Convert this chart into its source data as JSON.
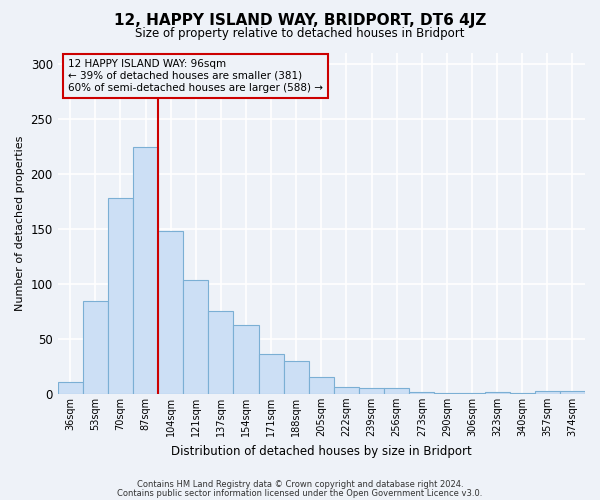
{
  "title": "12, HAPPY ISLAND WAY, BRIDPORT, DT6 4JZ",
  "subtitle": "Size of property relative to detached houses in Bridport",
  "xlabel": "Distribution of detached houses by size in Bridport",
  "ylabel": "Number of detached properties",
  "bar_labels": [
    "36sqm",
    "53sqm",
    "70sqm",
    "87sqm",
    "104sqm",
    "121sqm",
    "137sqm",
    "154sqm",
    "171sqm",
    "188sqm",
    "205sqm",
    "222sqm",
    "239sqm",
    "256sqm",
    "273sqm",
    "290sqm",
    "306sqm",
    "323sqm",
    "340sqm",
    "357sqm",
    "374sqm"
  ],
  "bar_values": [
    11,
    84,
    178,
    224,
    148,
    103,
    75,
    63,
    36,
    30,
    15,
    6,
    5,
    5,
    2,
    1,
    1,
    2,
    1,
    3,
    3
  ],
  "bar_color": "#ccdff5",
  "bar_edge_color": "#7bafd4",
  "vline_color": "#cc0000",
  "annotation_title": "12 HAPPY ISLAND WAY: 96sqm",
  "annotation_line2": "← 39% of detached houses are smaller (381)",
  "annotation_line3": "60% of semi-detached houses are larger (588) →",
  "annotation_box_color": "#cc0000",
  "ylim": [
    0,
    310
  ],
  "yticks": [
    0,
    50,
    100,
    150,
    200,
    250,
    300
  ],
  "bg_color": "#eef2f8",
  "grid_color": "#ffffff",
  "footer1": "Contains HM Land Registry data © Crown copyright and database right 2024.",
  "footer2": "Contains public sector information licensed under the Open Government Licence v3.0."
}
